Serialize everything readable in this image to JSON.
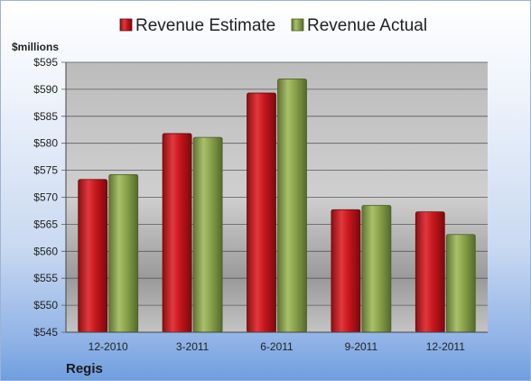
{
  "chart_data": {
    "type": "bar",
    "company": "Regis",
    "unit_label": "$millions",
    "categories": [
      "12-2010",
      "3-2011",
      "6-2011",
      "9-2011",
      "12-2011"
    ],
    "series": [
      {
        "name": "Revenue Estimate",
        "color": "#c8161d",
        "values": [
          573.3,
          581.8,
          589.3,
          567.7,
          567.3
        ]
      },
      {
        "name": "Revenue Actual",
        "color": "#8aa34a",
        "values": [
          574.2,
          581.1,
          591.9,
          568.5,
          563.1
        ]
      }
    ],
    "ylim": [
      545,
      595
    ],
    "yticks": [
      "$545",
      "$550",
      "$555",
      "$560",
      "$565",
      "$570",
      "$575",
      "$580",
      "$585",
      "$590",
      "$595"
    ],
    "ytick_values": [
      545,
      550,
      555,
      560,
      565,
      570,
      575,
      580,
      585,
      590,
      595
    ],
    "grid": true,
    "legend_position": "top"
  }
}
